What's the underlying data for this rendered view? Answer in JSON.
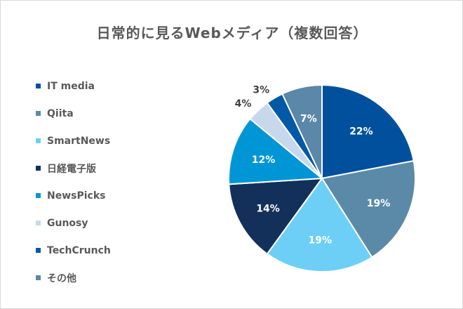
{
  "chart_data": {
    "type": "pie",
    "title": "日常的に見るWebメディア（複数回答）",
    "legend_position": "left",
    "start_angle_deg": 0,
    "direction": "clockwise",
    "slices": [
      {
        "name": "IT media",
        "value": 22,
        "label": "22%",
        "color": "#00509e",
        "label_color": "#ffffff",
        "label_outside": false
      },
      {
        "name": "Qiita",
        "value": 19,
        "label": "19%",
        "color": "#5b8aa9",
        "label_color": "#ffffff",
        "label_outside": false
      },
      {
        "name": "SmartNews",
        "value": 19,
        "label": "19%",
        "color": "#6dcff6",
        "label_color": "#ffffff",
        "label_outside": false
      },
      {
        "name": "日経電子版",
        "value": 14,
        "label": "14%",
        "color": "#13305b",
        "label_color": "#ffffff",
        "label_outside": false
      },
      {
        "name": "NewsPicks",
        "value": 12,
        "label": "12%",
        "color": "#0096d6",
        "label_color": "#ffffff",
        "label_outside": false
      },
      {
        "name": "Gunosy",
        "value": 4,
        "label": "4%",
        "color": "#c8d8ec",
        "label_color": "#404040",
        "label_outside": true
      },
      {
        "name": "TechCrunch",
        "value": 3,
        "label": "3%",
        "color": "#0059a6",
        "label_color": "#404040",
        "label_outside": true
      },
      {
        "name": "その他",
        "value": 7,
        "label": "7%",
        "color": "#5b87a8",
        "label_color": "#ffffff",
        "label_outside": false
      }
    ]
  }
}
